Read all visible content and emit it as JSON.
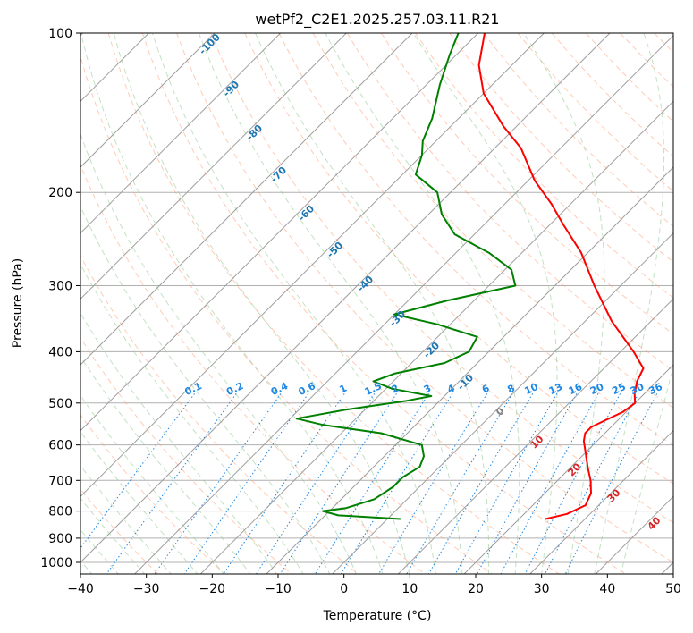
{
  "chart_data": {
    "type": "line",
    "subtype": "skew-T log-P diagram",
    "title": "wetPf2_C2E1.2025.257.03.11.R21",
    "xlabel": "Temperature (°C)",
    "ylabel": "Pressure (hPa)",
    "xlim": [
      -40,
      50
    ],
    "ylim": [
      1050,
      100
    ],
    "y_scale": "log",
    "grid": true,
    "x_ticks": [
      -40,
      -30,
      -20,
      -10,
      0,
      10,
      20,
      30,
      40,
      50
    ],
    "y_ticks": [
      100,
      200,
      300,
      400,
      500,
      600,
      700,
      800,
      900,
      1000
    ],
    "series": [
      {
        "color": "#ff0000",
        "points": [
          {
            "p": 828,
            "t": 24
          },
          {
            "p": 810,
            "t": 26.5
          },
          {
            "p": 780,
            "t": 28
          },
          {
            "p": 740,
            "t": 27
          },
          {
            "p": 700,
            "t": 25
          },
          {
            "p": 660,
            "t": 22.5
          },
          {
            "p": 620,
            "t": 20
          },
          {
            "p": 590,
            "t": 18
          },
          {
            "p": 570,
            "t": 17
          },
          {
            "p": 555,
            "t": 17
          },
          {
            "p": 540,
            "t": 18
          },
          {
            "p": 520,
            "t": 19.5
          },
          {
            "p": 500,
            "t": 20
          },
          {
            "p": 480,
            "t": 18.5
          },
          {
            "p": 455,
            "t": 17
          },
          {
            "p": 430,
            "t": 16
          },
          {
            "p": 400,
            "t": 12
          },
          {
            "p": 350,
            "t": 4
          },
          {
            "p": 300,
            "t": -4
          },
          {
            "p": 260,
            "t": -11
          },
          {
            "p": 230,
            "t": -18
          },
          {
            "p": 210,
            "t": -23
          },
          {
            "p": 190,
            "t": -29
          },
          {
            "p": 165,
            "t": -36
          },
          {
            "p": 150,
            "t": -42
          },
          {
            "p": 130,
            "t": -50
          },
          {
            "p": 115,
            "t": -55
          },
          {
            "p": 100,
            "t": -59
          }
        ]
      },
      {
        "color": "#008000",
        "points": [
          {
            "p": 828,
            "t": 2
          },
          {
            "p": 815,
            "t": -8
          },
          {
            "p": 800,
            "t": -11
          },
          {
            "p": 790,
            "t": -8
          },
          {
            "p": 760,
            "t": -5
          },
          {
            "p": 720,
            "t": -4
          },
          {
            "p": 690,
            "t": -4
          },
          {
            "p": 660,
            "t": -3
          },
          {
            "p": 630,
            "t": -4
          },
          {
            "p": 600,
            "t": -6
          },
          {
            "p": 570,
            "t": -14
          },
          {
            "p": 550,
            "t": -24
          },
          {
            "p": 535,
            "t": -29
          },
          {
            "p": 515,
            "t": -23
          },
          {
            "p": 495,
            "t": -15
          },
          {
            "p": 485,
            "t": -12
          },
          {
            "p": 470,
            "t": -19
          },
          {
            "p": 455,
            "t": -23
          },
          {
            "p": 440,
            "t": -21
          },
          {
            "p": 420,
            "t": -15
          },
          {
            "p": 400,
            "t": -13
          },
          {
            "p": 375,
            "t": -14
          },
          {
            "p": 355,
            "t": -22
          },
          {
            "p": 340,
            "t": -30
          },
          {
            "p": 320,
            "t": -24
          },
          {
            "p": 300,
            "t": -16
          },
          {
            "p": 280,
            "t": -19
          },
          {
            "p": 260,
            "t": -25
          },
          {
            "p": 240,
            "t": -33
          },
          {
            "p": 220,
            "t": -38
          },
          {
            "p": 200,
            "t": -42
          },
          {
            "p": 185,
            "t": -48
          },
          {
            "p": 170,
            "t": -50
          },
          {
            "p": 160,
            "t": -52
          },
          {
            "p": 145,
            "t": -54
          },
          {
            "p": 125,
            "t": -58
          },
          {
            "p": 110,
            "t": -61
          },
          {
            "p": 100,
            "t": -63
          }
        ]
      }
    ],
    "isotherm_labels": [
      "-100",
      "-90",
      "-80",
      "-70",
      "-60",
      "-50",
      "-40",
      "-30",
      "-20",
      "-10",
      "0",
      "10",
      "20",
      "30",
      "40"
    ],
    "mixing_ratio_labels": [
      "0.1",
      "0.2",
      "0.4",
      "0.6",
      "1",
      "1.5",
      "2",
      "3",
      "4",
      "6",
      "8",
      "10",
      "13",
      "16",
      "20",
      "25",
      "30",
      "36"
    ]
  }
}
